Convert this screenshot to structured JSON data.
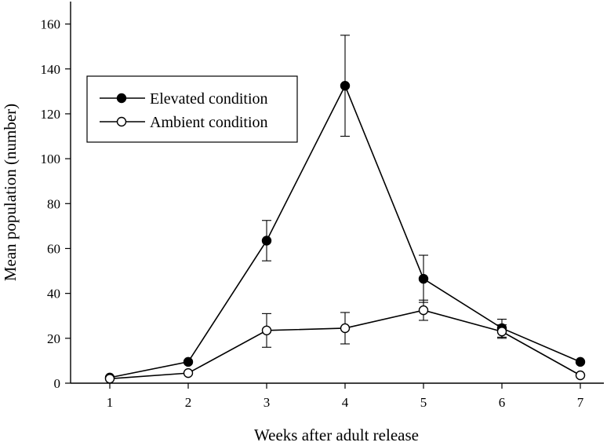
{
  "chart_data": {
    "type": "line",
    "title": "",
    "xlabel": "Weeks after adult release",
    "ylabel": "Mean population (number)",
    "x": [
      1,
      2,
      3,
      4,
      5,
      6,
      7
    ],
    "xlim": [
      0.5,
      7.3
    ],
    "ylim": [
      0,
      170
    ],
    "y_ticks": [
      0,
      20,
      40,
      60,
      80,
      100,
      120,
      140,
      160
    ],
    "x_ticks": [
      1,
      2,
      3,
      4,
      5,
      6,
      7
    ],
    "grid": false,
    "legend_position": "top-left",
    "series": [
      {
        "name": "Elevated condition",
        "marker": "filled-circle",
        "color": "#000000",
        "values": [
          2.5,
          9.5,
          63.5,
          132.5,
          46.5,
          24.5,
          9.5
        ],
        "errors": [
          0,
          0,
          9,
          22.5,
          10.5,
          4,
          0
        ]
      },
      {
        "name": "Ambient condition",
        "marker": "open-circle",
        "color": "#000000",
        "values": [
          2.0,
          4.5,
          23.5,
          24.5,
          32.5,
          23.0,
          3.5
        ],
        "errors": [
          0,
          0,
          7.5,
          7,
          4.5,
          3,
          0
        ]
      }
    ]
  }
}
